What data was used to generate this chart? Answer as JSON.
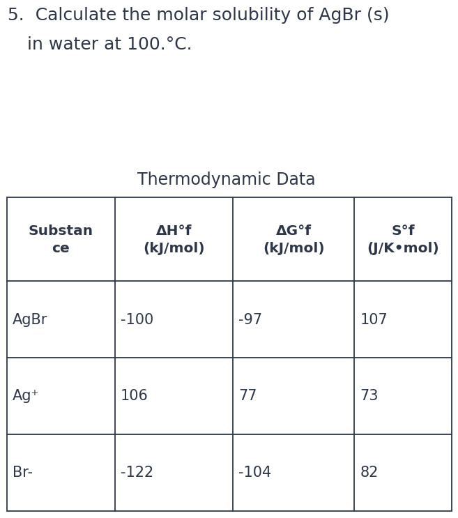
{
  "title_line1": "5.  Calculate the molar solubility of AgBr (s)",
  "title_line2": "in water at 100.°C.",
  "table_title": "Thermodynamic Data",
  "col_headers_line1": [
    "Substan",
    "ΔH°f",
    "ΔG°f",
    "S°f"
  ],
  "col_headers_line2": [
    "ce",
    "(kJ/mol)",
    "(kJ/mol)",
    "(J/K•mol)"
  ],
  "rows": [
    [
      "AgBr",
      "-100",
      "-97",
      "107"
    ],
    [
      "Ag⁺",
      "106",
      "77",
      "73"
    ],
    [
      "Br-",
      "-122",
      "-104",
      "82"
    ]
  ],
  "text_color": "#2d3748",
  "background_color": "#ffffff",
  "border_color": "#2d3748",
  "title_fontsize": 18,
  "table_title_fontsize": 17,
  "header_fontsize": 14.5,
  "cell_fontsize": 15
}
